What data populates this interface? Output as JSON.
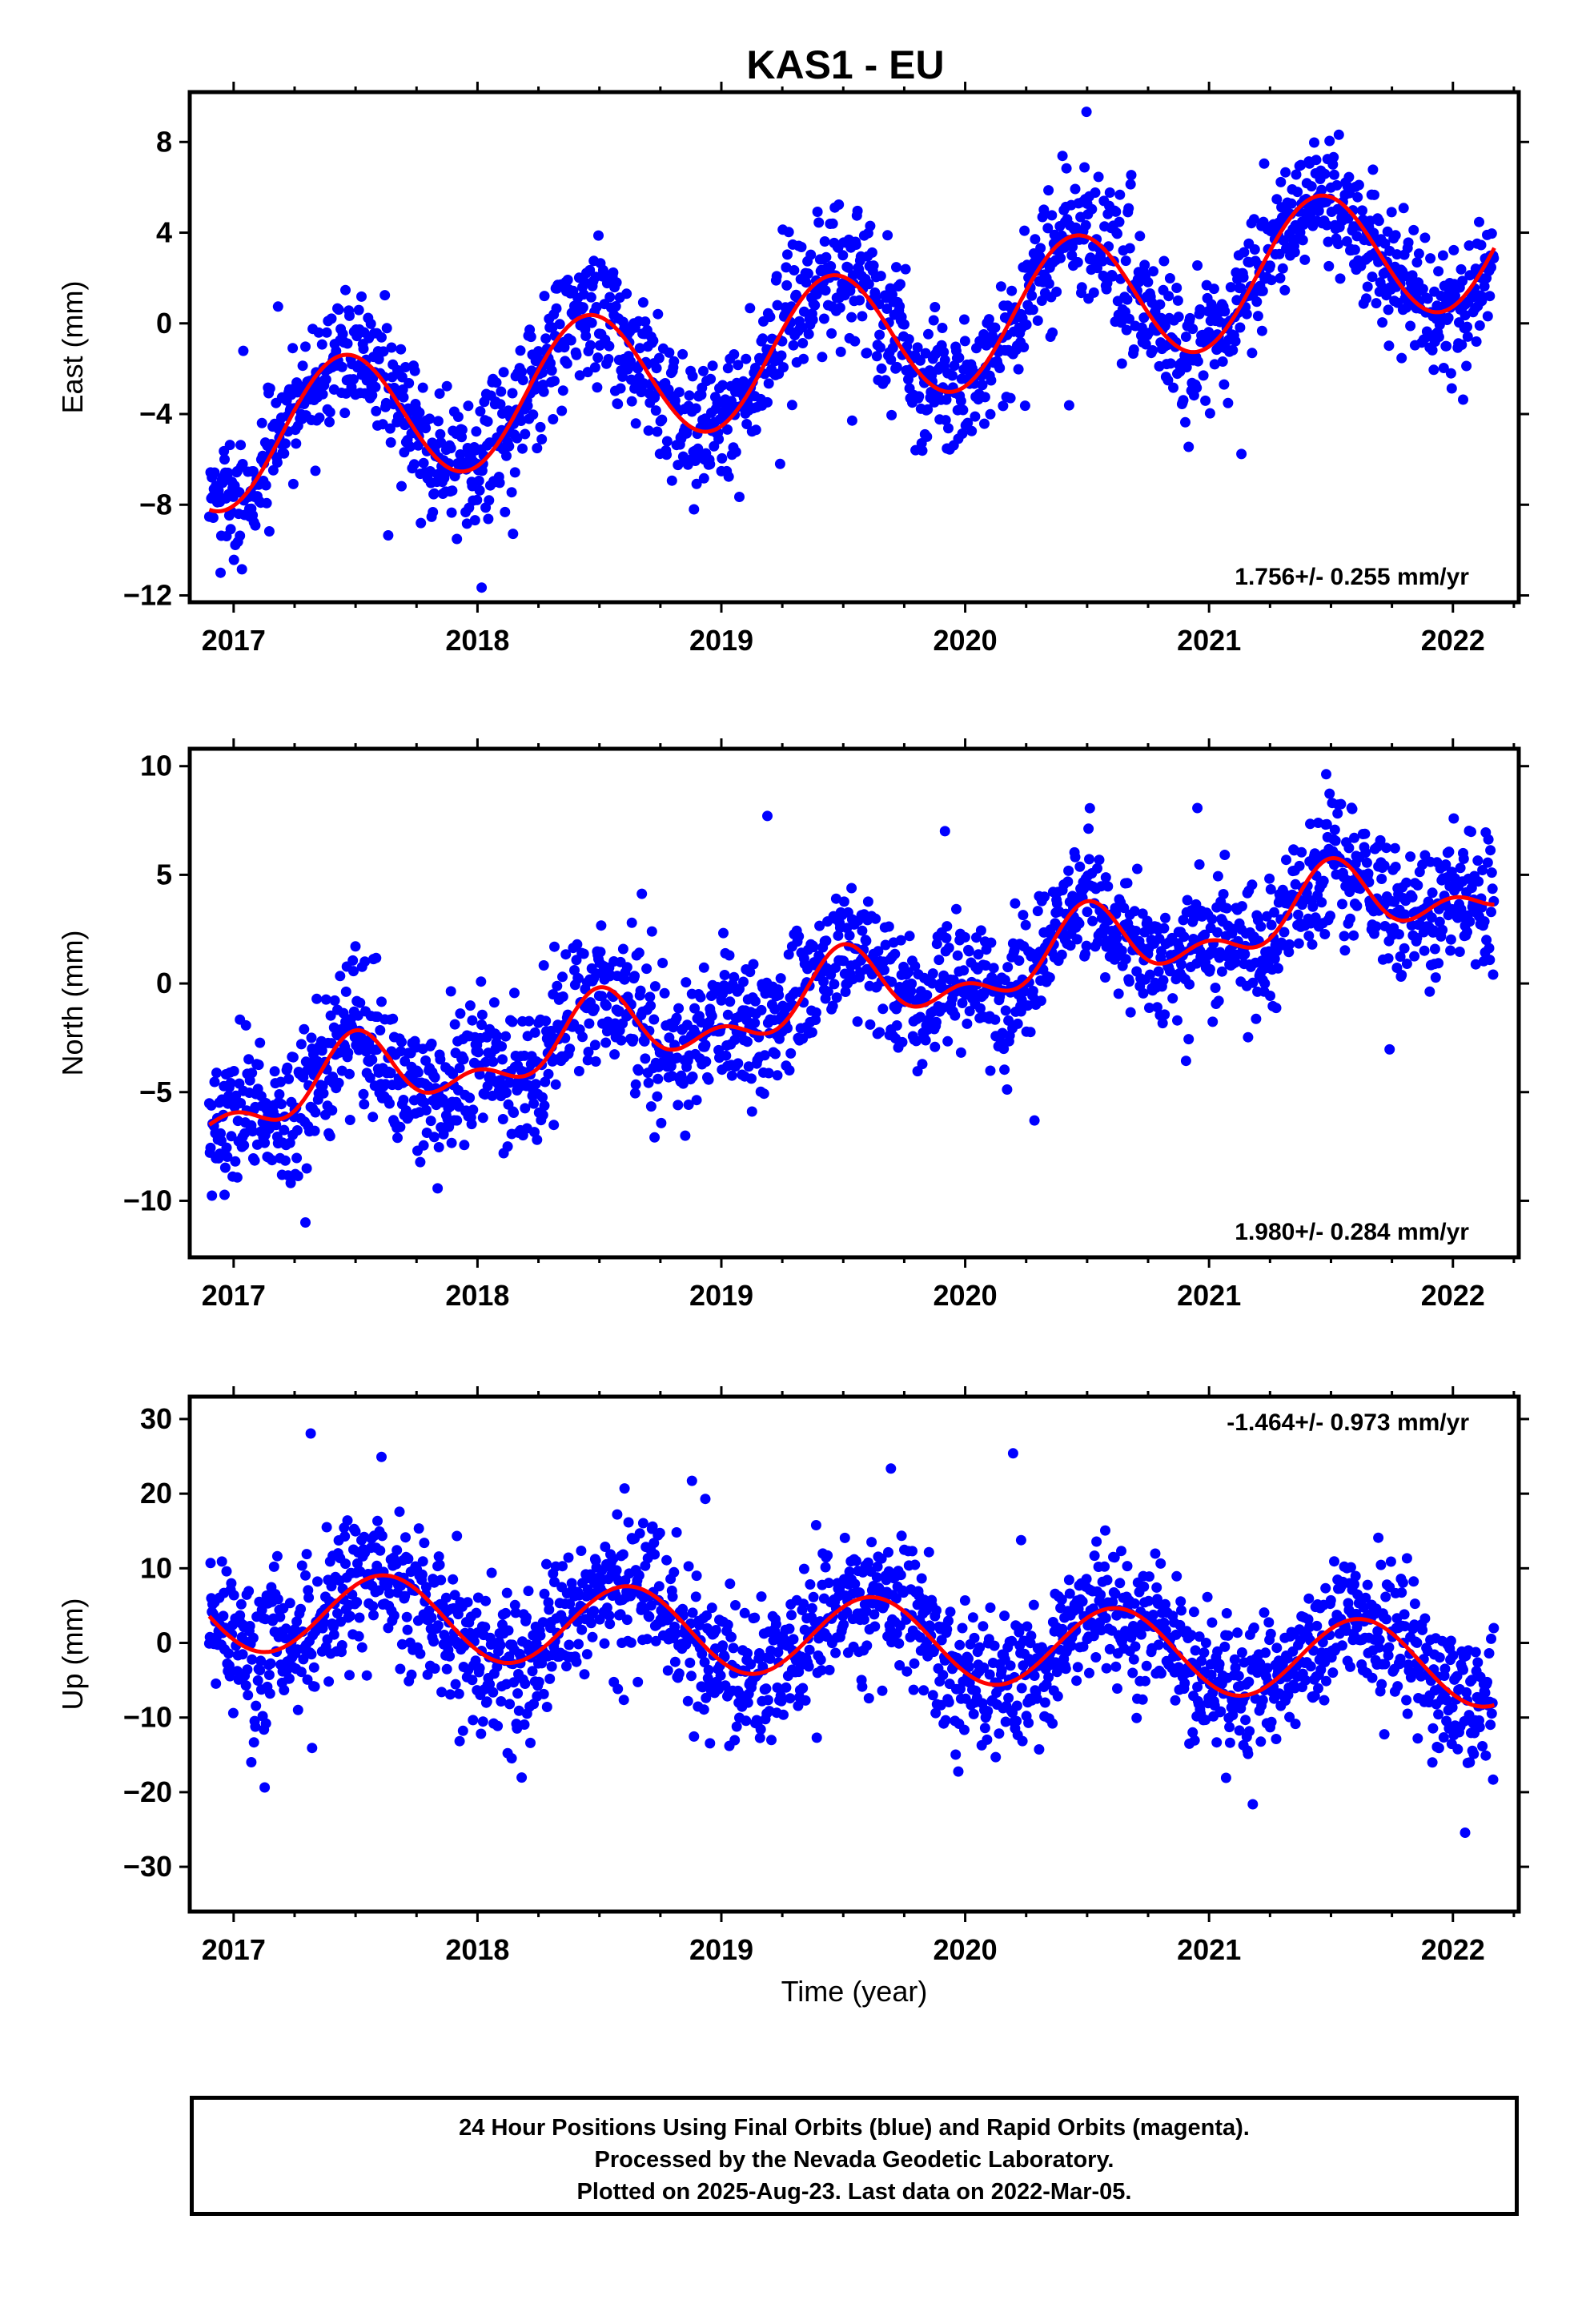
{
  "title": "KAS1 - EU",
  "chart_data": [
    {
      "type": "scatter",
      "panel": "east",
      "ylabel": "East (mm)",
      "xlabel": "",
      "xlim": [
        2016.82,
        2022.27
      ],
      "ylim": [
        -12.3,
        10.2
      ],
      "yticks": [
        8,
        4,
        0,
        -4,
        -8,
        -12
      ],
      "ytick_labels": [
        "8",
        "4",
        "0",
        "−4",
        "−8",
        "−12"
      ],
      "xticks": [
        2017,
        2018,
        2019,
        2020,
        2021,
        2022
      ],
      "xtick_labels": [
        "2017",
        "2018",
        "2019",
        "2020",
        "2021",
        "2022"
      ],
      "rate_label": "1.756+/- 0.255 mm/yr",
      "rate_position": "bottom-right",
      "series": [
        {
          "role": "daily positions",
          "color": "#0000ff",
          "marker": "dot",
          "x_start": 2016.9,
          "x_end": 2022.17,
          "scatter_sd": 1.4,
          "fit_center": 2019.5,
          "fit_offset": -0.8,
          "fit_rate": 1.756,
          "fit_annual_amp": 3.0,
          "fit_annual_peak": 2017.45
        },
        {
          "role": "model fit",
          "color": "#ff0000"
        }
      ],
      "x_range_data": [
        2016.9,
        2022.17
      ]
    },
    {
      "type": "scatter",
      "panel": "north",
      "ylabel": "North (mm)",
      "xlabel": "",
      "xlim": [
        2016.82,
        2022.27
      ],
      "ylim": [
        -12.6,
        10.8
      ],
      "yticks": [
        10,
        5,
        0,
        -5,
        -10
      ],
      "ytick_labels": [
        "10",
        "5",
        "0",
        "−5",
        "−10"
      ],
      "xticks": [
        2017,
        2018,
        2019,
        2020,
        2021,
        2022
      ],
      "xtick_labels": [
        "2017",
        "2018",
        "2019",
        "2020",
        "2021",
        "2022"
      ],
      "rate_label": "1.980+/- 0.284 mm/yr",
      "rate_position": "bottom-right",
      "series": [
        {
          "role": "daily positions",
          "color": "#0000ff",
          "marker": "dot",
          "x_start": 2016.9,
          "x_end": 2022.17,
          "scatter_sd": 1.5,
          "fit_center": 2019.5,
          "fit_offset": -0.5,
          "fit_rate": 1.98,
          "fit_annual_amp": 1.4,
          "fit_annual_peak": 2017.5,
          "fit_semiannual_amp": 0.9,
          "fit_semiannual_peak": 2017.5
        },
        {
          "role": "model fit",
          "color": "#ff0000"
        }
      ]
    },
    {
      "type": "scatter",
      "panel": "up",
      "ylabel": "Up (mm)",
      "xlabel": "Time (year)",
      "xlim": [
        2016.82,
        2022.27
      ],
      "ylim": [
        -36,
        33
      ],
      "yticks": [
        30,
        20,
        10,
        0,
        -10,
        -20,
        -30
      ],
      "ytick_labels": [
        "30",
        "20",
        "10",
        "0",
        "−10",
        "−20",
        "−30"
      ],
      "xticks": [
        2017,
        2018,
        2019,
        2020,
        2021,
        2022
      ],
      "xtick_labels": [
        "2017",
        "2018",
        "2019",
        "2020",
        "2021",
        "2022"
      ],
      "rate_label": "-1.464+/- 0.973 mm/yr",
      "rate_position": "top-right",
      "series": [
        {
          "role": "daily positions",
          "color": "#0000ff",
          "marker": "dot",
          "x_start": 2016.9,
          "x_end": 2022.17,
          "scatter_sd": 4.5,
          "fit_center": 2019.5,
          "fit_offset": 0.8,
          "fit_rate": -1.464,
          "fit_annual_amp": 5.5,
          "fit_annual_peak": 2017.62
        },
        {
          "role": "model fit",
          "color": "#ff0000"
        }
      ]
    }
  ],
  "footer": {
    "line1": "24 Hour Positions Using Final Orbits (blue) and Rapid Orbits (magenta).",
    "line2": "Processed by the Nevada Geodetic Laboratory.",
    "line3": "Plotted on 2025-Aug-23. Last data on 2022-Mar-05."
  }
}
